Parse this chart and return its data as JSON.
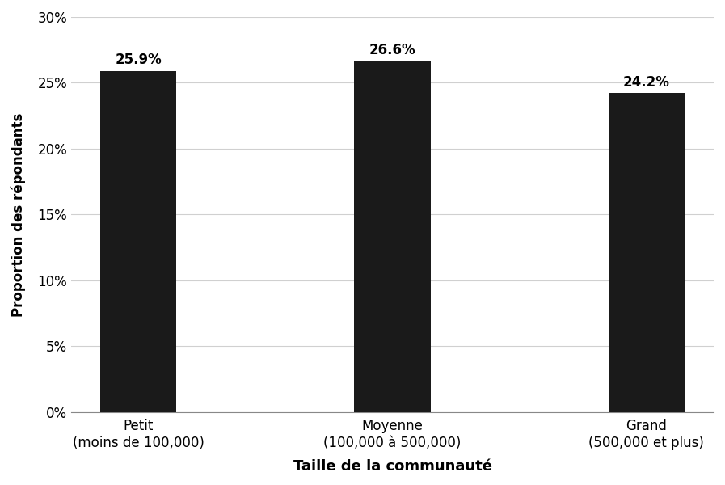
{
  "categories": [
    "Petit\n(moins de 100,000)",
    "Moyenne\n(100,000 à 500,000)",
    "Grand\n(500,000 et plus)"
  ],
  "values": [
    25.9,
    26.6,
    24.2
  ],
  "bar_color": "#1a1a1a",
  "bar_width": 0.3,
  "xlabel": "Taille de la communauté",
  "ylabel": "Proportion des répondants",
  "ylim": [
    0,
    30
  ],
  "yticks": [
    0,
    5,
    10,
    15,
    20,
    25,
    30
  ],
  "ytick_labels": [
    "0%",
    "5%",
    "10%",
    "15%",
    "20%",
    "25%",
    "30%"
  ],
  "tick_fontsize": 12,
  "annotation_fontsize": 12,
  "background_color": "#ffffff",
  "grid_color": "#d0d0d0",
  "xlabel_fontsize": 13,
  "ylabel_fontsize": 12
}
